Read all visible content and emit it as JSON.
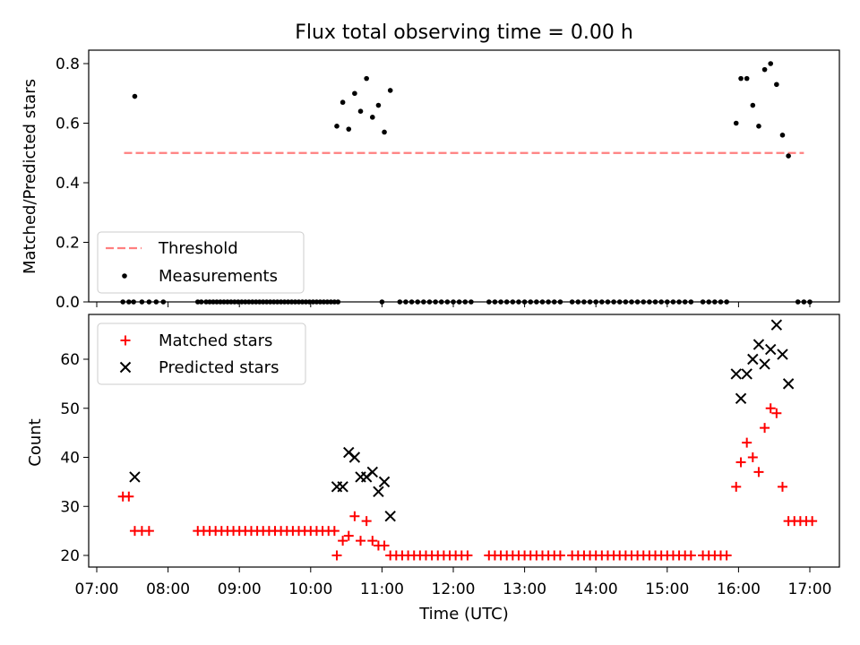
{
  "chart_data": [
    {
      "type": "scatter",
      "title": "Flux total observing time = 0.00 h",
      "xlabel": "",
      "ylabel": "Matched/Predicted stars",
      "xlim": [
        "07:00",
        "17:30"
      ],
      "ylim": [
        0.0,
        0.85
      ],
      "y_ticks": [
        0.0,
        0.2,
        0.4,
        0.6,
        0.8
      ],
      "y_tick_labels": [
        "0.0",
        "0.2",
        "0.4",
        "0.6",
        "0.8"
      ],
      "legend": "lower-left",
      "legend_entries": [
        {
          "name": "Threshold",
          "color": "#ff7f7f",
          "style": "dashed-line"
        },
        {
          "name": "Measurements",
          "color": "#000000",
          "style": "dot"
        }
      ],
      "series": [
        {
          "name": "Threshold",
          "type": "line",
          "x": [
            "07:23",
            "16:55"
          ],
          "y": [
            0.5,
            0.5
          ]
        },
        {
          "name": "Measurements",
          "type": "scatter",
          "x": [
            "07:22",
            "07:27",
            "07:31",
            "07:38",
            "07:44",
            "07:50",
            "07:56",
            "08:25",
            "08:28",
            "08:32",
            "08:35",
            "08:38",
            "08:41",
            "08:44",
            "08:47",
            "08:50",
            "08:53",
            "08:56",
            "08:59",
            "09:02",
            "09:05",
            "09:08",
            "09:11",
            "09:14",
            "09:17",
            "09:20",
            "09:23",
            "09:26",
            "09:29",
            "09:32",
            "09:35",
            "09:38",
            "09:41",
            "09:44",
            "09:47",
            "09:50",
            "09:53",
            "09:56",
            "09:59",
            "10:02",
            "10:05",
            "10:08",
            "10:11",
            "10:14",
            "10:17",
            "10:20",
            "10:23",
            "11:00",
            "11:15",
            "11:20",
            "11:25",
            "11:30",
            "11:35",
            "11:40",
            "11:45",
            "11:50",
            "11:55",
            "12:00",
            "12:05",
            "12:10",
            "12:15",
            "12:30",
            "12:35",
            "12:40",
            "12:45",
            "12:50",
            "12:55",
            "13:00",
            "13:05",
            "13:10",
            "13:15",
            "13:20",
            "13:25",
            "13:30",
            "13:40",
            "13:45",
            "13:50",
            "13:55",
            "14:00",
            "14:05",
            "14:10",
            "14:15",
            "14:20",
            "14:25",
            "14:30",
            "14:35",
            "14:40",
            "14:45",
            "14:50",
            "14:55",
            "15:00",
            "15:05",
            "15:10",
            "15:15",
            "15:20",
            "15:30",
            "15:35",
            "15:40",
            "15:45",
            "15:50",
            "16:50",
            "16:55",
            "17:00",
            "07:32",
            "10:22",
            "10:27",
            "10:32",
            "10:37",
            "10:42",
            "10:47",
            "10:52",
            "10:57",
            "11:02",
            "11:07",
            "15:58",
            "16:02",
            "16:07",
            "16:12",
            "16:17",
            "16:22",
            "16:27",
            "16:32",
            "16:37",
            "16:42"
          ],
          "y": [
            0,
            0,
            0,
            0,
            0,
            0,
            0,
            0,
            0,
            0,
            0,
            0,
            0,
            0,
            0,
            0,
            0,
            0,
            0,
            0,
            0,
            0,
            0,
            0,
            0,
            0,
            0,
            0,
            0,
            0,
            0,
            0,
            0,
            0,
            0,
            0,
            0,
            0,
            0,
            0,
            0,
            0,
            0,
            0,
            0,
            0,
            0,
            0,
            0,
            0,
            0,
            0,
            0,
            0,
            0,
            0,
            0,
            0,
            0,
            0,
            0,
            0,
            0,
            0,
            0,
            0,
            0,
            0,
            0,
            0,
            0,
            0,
            0,
            0,
            0,
            0,
            0,
            0,
            0,
            0,
            0,
            0,
            0,
            0,
            0,
            0,
            0,
            0,
            0,
            0,
            0,
            0,
            0,
            0,
            0,
            0,
            0,
            0,
            0,
            0,
            0,
            0,
            0,
            0.69,
            0.59,
            0.67,
            0.58,
            0.7,
            0.64,
            0.75,
            0.62,
            0.66,
            0.57,
            0.71,
            0.6,
            0.75,
            0.75,
            0.66,
            0.59,
            0.78,
            0.8,
            0.73,
            0.56,
            0.49
          ]
        }
      ]
    },
    {
      "type": "scatter",
      "title": "",
      "xlabel": "Time (UTC)",
      "ylabel": "Count",
      "xlim": [
        "07:00",
        "17:30"
      ],
      "ylim": [
        18,
        70
      ],
      "y_ticks": [
        20,
        30,
        40,
        50,
        60
      ],
      "y_tick_labels": [
        "20",
        "30",
        "40",
        "50",
        "60"
      ],
      "x_ticks": [
        "07:00",
        "08:00",
        "09:00",
        "10:00",
        "11:00",
        "12:00",
        "13:00",
        "14:00",
        "15:00",
        "16:00",
        "17:00"
      ],
      "legend": "top-left",
      "legend_entries": [
        {
          "name": "Matched stars",
          "color": "#ff0000",
          "style": "plus"
        },
        {
          "name": "Predicted stars",
          "color": "#000000",
          "style": "x"
        }
      ],
      "series": [
        {
          "name": "Matched stars",
          "type": "scatter",
          "x": [
            "07:22",
            "07:27",
            "07:32",
            "07:38",
            "07:44",
            "08:25",
            "08:30",
            "08:35",
            "08:40",
            "08:45",
            "08:50",
            "08:55",
            "09:00",
            "09:05",
            "09:10",
            "09:15",
            "09:20",
            "09:25",
            "09:30",
            "09:35",
            "09:40",
            "09:45",
            "09:50",
            "09:55",
            "10:00",
            "10:05",
            "10:10",
            "10:15",
            "10:20",
            "10:22",
            "10:27",
            "10:32",
            "10:37",
            "10:42",
            "10:47",
            "10:52",
            "10:57",
            "11:02",
            "11:07",
            "11:12",
            "11:17",
            "11:22",
            "11:27",
            "11:32",
            "11:37",
            "11:42",
            "11:47",
            "11:52",
            "11:57",
            "12:02",
            "12:07",
            "12:12",
            "12:30",
            "12:35",
            "12:40",
            "12:45",
            "12:50",
            "12:55",
            "13:00",
            "13:05",
            "13:10",
            "13:15",
            "13:20",
            "13:25",
            "13:30",
            "13:40",
            "13:45",
            "13:50",
            "13:55",
            "14:00",
            "14:05",
            "14:10",
            "14:15",
            "14:20",
            "14:25",
            "14:30",
            "14:35",
            "14:40",
            "14:45",
            "14:50",
            "14:55",
            "15:00",
            "15:05",
            "15:10",
            "15:15",
            "15:20",
            "15:30",
            "15:35",
            "15:40",
            "15:45",
            "15:50",
            "15:58",
            "16:02",
            "16:07",
            "16:12",
            "16:17",
            "16:22",
            "16:27",
            "16:32",
            "16:37",
            "16:42",
            "16:47",
            "16:52",
            "16:57",
            "17:02"
          ],
          "y": [
            32,
            32,
            25,
            25,
            25,
            25,
            25,
            25,
            25,
            25,
            25,
            25,
            25,
            25,
            25,
            25,
            25,
            25,
            25,
            25,
            25,
            25,
            25,
            25,
            25,
            25,
            25,
            25,
            25,
            20,
            23,
            24,
            28,
            23,
            27,
            23,
            22,
            22,
            20,
            20,
            20,
            20,
            20,
            20,
            20,
            20,
            20,
            20,
            20,
            20,
            20,
            20,
            20,
            20,
            20,
            20,
            20,
            20,
            20,
            20,
            20,
            20,
            20,
            20,
            20,
            20,
            20,
            20,
            20,
            20,
            20,
            20,
            20,
            20,
            20,
            20,
            20,
            20,
            20,
            20,
            20,
            20,
            20,
            20,
            20,
            20,
            20,
            20,
            20,
            20,
            20,
            34,
            39,
            43,
            40,
            37,
            46,
            50,
            49,
            34,
            27,
            27,
            27,
            27,
            27
          ]
        },
        {
          "name": "Predicted stars",
          "type": "scatter",
          "x": [
            "07:32",
            "10:22",
            "10:27",
            "10:32",
            "10:37",
            "10:42",
            "10:47",
            "10:52",
            "10:57",
            "11:02",
            "11:07",
            "15:58",
            "16:02",
            "16:07",
            "16:12",
            "16:17",
            "16:22",
            "16:27",
            "16:32",
            "16:37",
            "16:42"
          ],
          "y": [
            36,
            34,
            34,
            41,
            40,
            36,
            36,
            37,
            33,
            35,
            28,
            57,
            52,
            57,
            60,
            63,
            59,
            62,
            67,
            61,
            55
          ]
        }
      ]
    }
  ]
}
